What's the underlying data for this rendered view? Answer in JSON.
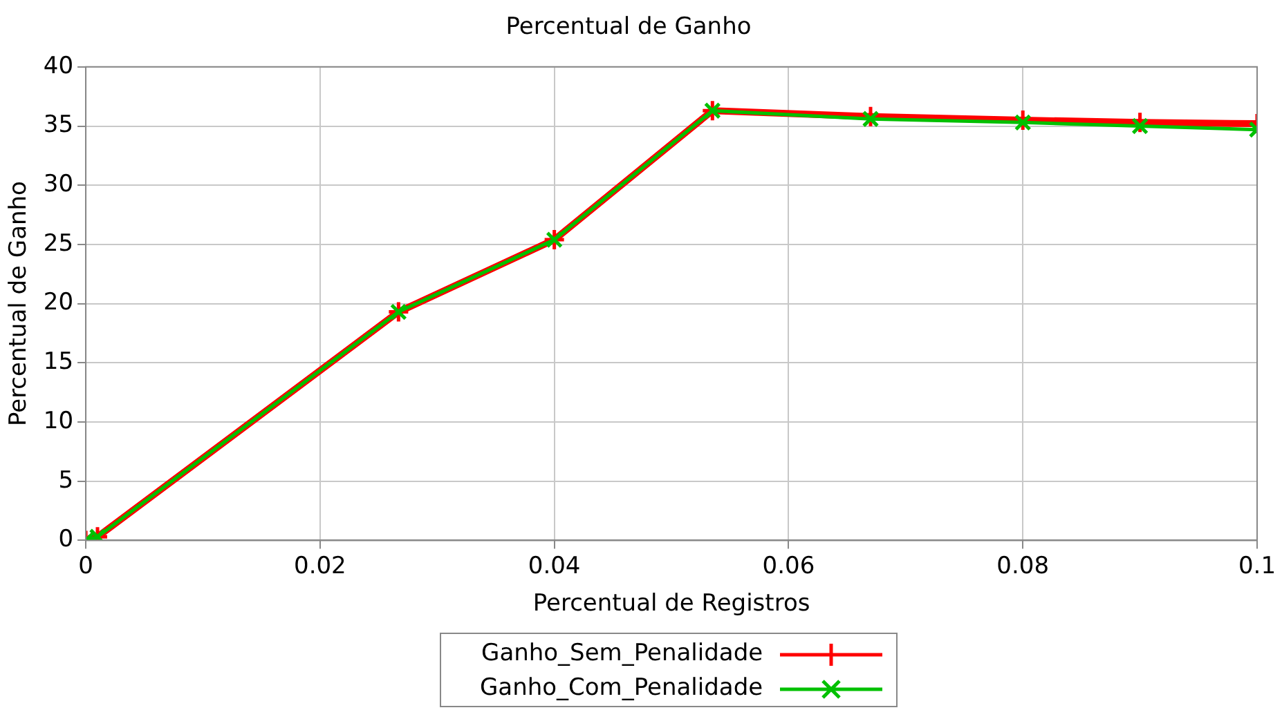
{
  "chart_data": {
    "type": "line",
    "title": "Percentual de Ganho",
    "xlabel": "Percentual de Registros",
    "ylabel": "Percentual de Ganho",
    "x": [
      0,
      0.001,
      0.0267,
      0.04,
      0.0535,
      0.067,
      0.08,
      0.09,
      0.1
    ],
    "series": [
      {
        "name": "Ganho_Sem_Penalidade",
        "color": "#ff0000",
        "marker": "cross",
        "values": [
          0,
          0.3,
          19.3,
          25.4,
          36.3,
          35.8,
          35.5,
          35.3,
          35.2
        ]
      },
      {
        "name": "Ganho_Com_Penalidade",
        "color": "#00c000",
        "marker": "x",
        "values": [
          0,
          0.3,
          19.3,
          25.4,
          36.3,
          35.6,
          35.3,
          35.0,
          34.7
        ]
      }
    ],
    "xlim": [
      0,
      0.1
    ],
    "xticks": [
      0,
      0.02,
      0.04,
      0.06,
      0.08,
      0.1
    ],
    "ylim": [
      0,
      40
    ],
    "yticks": [
      0,
      5,
      10,
      15,
      20,
      25,
      30,
      35,
      40
    ],
    "grid": true,
    "legend": "bottom"
  }
}
